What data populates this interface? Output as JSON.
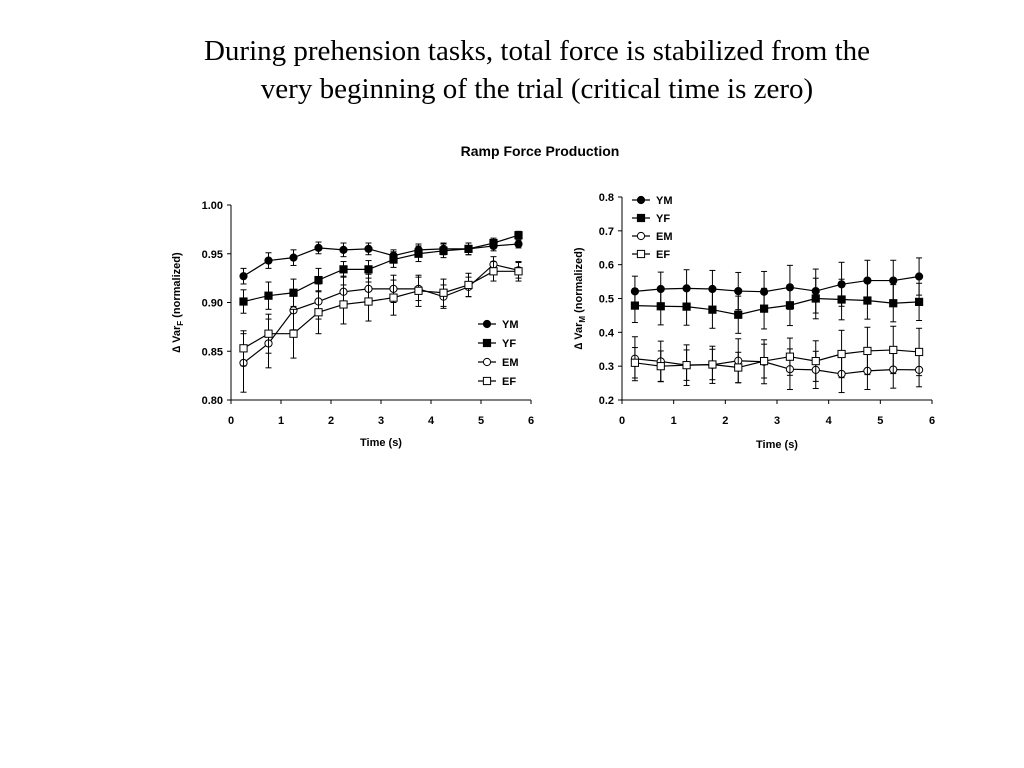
{
  "slide": {
    "title_line1": "During prehension tasks, total force is stabilized from the",
    "title_line2": "very beginning of the trial (critical time is zero)"
  },
  "figure": {
    "title": "Ramp Force Production"
  },
  "chart_data": [
    {
      "type": "line",
      "xlabel": "Time (s)",
      "ylabel_prefix": "Var",
      "ylabel_sub": "F",
      "ylabel_suffix": " (normalized)",
      "xlim": [
        0,
        6
      ],
      "ylim": [
        0.8,
        1.0
      ],
      "xticks": [
        0,
        1,
        2,
        3,
        4,
        5,
        6
      ],
      "xtick_labels": [
        "0",
        "1",
        "2",
        "3",
        "4",
        "5",
        "6"
      ],
      "yticks": [
        0.8,
        0.85,
        0.9,
        0.95,
        1.0
      ],
      "ytick_labels": [
        "0.80",
        "0.85",
        "0.90",
        "0.95",
        "1.00"
      ],
      "legend_position": "bottom-right",
      "grid": false,
      "x": [
        0.25,
        0.75,
        1.25,
        1.75,
        2.25,
        2.75,
        3.25,
        3.75,
        4.25,
        4.75,
        5.25,
        5.75
      ],
      "series": [
        {
          "name": "YM",
          "marker": "circle",
          "fill": "filled",
          "values": [
            0.927,
            0.943,
            0.946,
            0.956,
            0.954,
            0.955,
            0.948,
            0.954,
            0.955,
            0.955,
            0.958,
            0.96
          ],
          "errors": [
            0.008,
            0.008,
            0.008,
            0.006,
            0.007,
            0.006,
            0.006,
            0.006,
            0.006,
            0.006,
            0.005,
            0.004
          ]
        },
        {
          "name": "YF",
          "marker": "square",
          "fill": "filled",
          "values": [
            0.901,
            0.907,
            0.91,
            0.923,
            0.934,
            0.934,
            0.944,
            0.95,
            0.953,
            0.955,
            0.961,
            0.969
          ],
          "errors": [
            0.012,
            0.014,
            0.014,
            0.012,
            0.008,
            0.009,
            0.008,
            0.008,
            0.007,
            0.006,
            0.005,
            0.004
          ]
        },
        {
          "name": "EM",
          "marker": "circle",
          "fill": "open",
          "values": [
            0.838,
            0.858,
            0.892,
            0.901,
            0.911,
            0.914,
            0.914,
            0.914,
            0.906,
            0.916,
            0.939,
            0.933
          ],
          "errors": [
            0.03,
            0.025,
            0.02,
            0.018,
            0.016,
            0.015,
            0.014,
            0.012,
            0.012,
            0.01,
            0.008,
            0.008
          ]
        },
        {
          "name": "EF",
          "marker": "square",
          "fill": "open",
          "values": [
            0.853,
            0.868,
            0.868,
            0.89,
            0.898,
            0.901,
            0.905,
            0.912,
            0.91,
            0.918,
            0.932,
            0.932
          ],
          "errors": [
            0.018,
            0.02,
            0.025,
            0.022,
            0.02,
            0.02,
            0.018,
            0.016,
            0.014,
            0.012,
            0.01,
            0.01
          ]
        }
      ]
    },
    {
      "type": "line",
      "xlabel": "Time (s)",
      "ylabel_prefix": "Var",
      "ylabel_sub": "M",
      "ylabel_suffix": " (normalized)",
      "xlim": [
        0,
        6
      ],
      "ylim": [
        0.2,
        0.8
      ],
      "xticks": [
        0,
        1,
        2,
        3,
        4,
        5,
        6
      ],
      "xtick_labels": [
        "0",
        "1",
        "2",
        "3",
        "4",
        "5",
        "6"
      ],
      "yticks": [
        0.2,
        0.3,
        0.4,
        0.5,
        0.6,
        0.7,
        0.8
      ],
      "ytick_labels": [
        "0.2",
        "0.3",
        "0.4",
        "0.5",
        "0.6",
        "0.7",
        "0.8"
      ],
      "legend_position": "top-left",
      "grid": false,
      "x": [
        0.25,
        0.75,
        1.25,
        1.75,
        2.25,
        2.75,
        3.25,
        3.75,
        4.25,
        4.75,
        5.25,
        5.75
      ],
      "series": [
        {
          "name": "YM",
          "marker": "circle",
          "fill": "filled",
          "values": [
            0.521,
            0.528,
            0.53,
            0.528,
            0.522,
            0.52,
            0.533,
            0.522,
            0.542,
            0.553,
            0.553,
            0.565
          ],
          "errors": [
            0.045,
            0.05,
            0.055,
            0.055,
            0.055,
            0.06,
            0.065,
            0.065,
            0.065,
            0.06,
            0.06,
            0.055
          ]
        },
        {
          "name": "YF",
          "marker": "square",
          "fill": "filled",
          "values": [
            0.479,
            0.477,
            0.476,
            0.467,
            0.452,
            0.47,
            0.48,
            0.5,
            0.497,
            0.494,
            0.486,
            0.49
          ],
          "errors": [
            0.05,
            0.055,
            0.055,
            0.055,
            0.055,
            0.06,
            0.06,
            0.06,
            0.06,
            0.055,
            0.055,
            0.055
          ]
        },
        {
          "name": "EM",
          "marker": "circle",
          "fill": "open",
          "values": [
            0.322,
            0.314,
            0.303,
            0.304,
            0.316,
            0.313,
            0.291,
            0.289,
            0.277,
            0.286,
            0.29,
            0.289
          ],
          "errors": [
            0.065,
            0.06,
            0.06,
            0.055,
            0.065,
            0.065,
            0.06,
            0.055,
            0.055,
            0.055,
            0.055,
            0.05
          ]
        },
        {
          "name": "EF",
          "marker": "square",
          "fill": "open",
          "values": [
            0.31,
            0.3,
            0.303,
            0.305,
            0.296,
            0.315,
            0.328,
            0.315,
            0.336,
            0.345,
            0.348,
            0.342
          ],
          "errors": [
            0.045,
            0.045,
            0.045,
            0.045,
            0.045,
            0.05,
            0.055,
            0.06,
            0.07,
            0.07,
            0.07,
            0.07
          ]
        }
      ]
    }
  ]
}
